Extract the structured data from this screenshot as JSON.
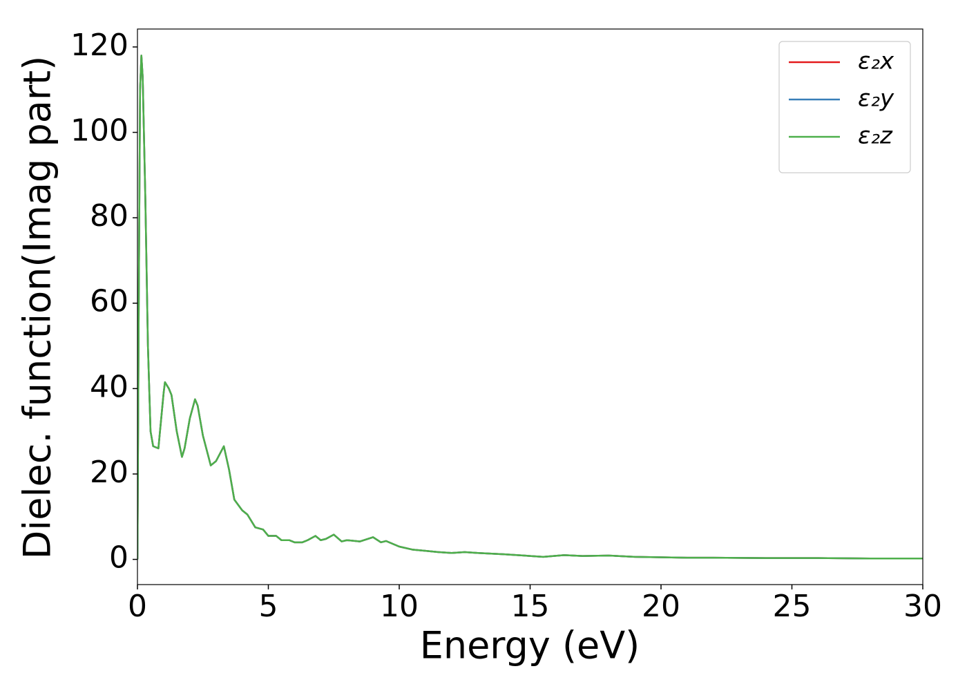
{
  "chart_data": {
    "type": "line",
    "xlabel": "Energy (eV)",
    "ylabel": "Dielec. function(Imag part)",
    "x": [
      0,
      0.05,
      0.1,
      0.15,
      0.2,
      0.3,
      0.4,
      0.5,
      0.6,
      0.8,
      1.0,
      1.05,
      1.2,
      1.3,
      1.5,
      1.7,
      1.8,
      2.0,
      2.2,
      2.3,
      2.5,
      2.8,
      3.0,
      3.3,
      3.5,
      3.7,
      4.0,
      4.2,
      4.5,
      4.8,
      5.0,
      5.3,
      5.5,
      5.8,
      6.0,
      6.3,
      6.5,
      6.8,
      7.0,
      7.2,
      7.5,
      7.8,
      8.0,
      8.5,
      9.0,
      9.3,
      9.5,
      10,
      10.5,
      11,
      11.5,
      12,
      12.5,
      13,
      14,
      15,
      15.5,
      16.3,
      17,
      18,
      19,
      20,
      21,
      22,
      24,
      26,
      28,
      30
    ],
    "series": [
      {
        "name": "ε₂x",
        "color": "#e41a1c",
        "values": [
          0,
          60,
          110,
          118,
          113,
          85,
          50,
          30,
          26.5,
          26,
          39,
          41.5,
          40,
          38.5,
          30,
          24,
          26,
          33,
          37.5,
          36,
          29,
          22,
          23,
          26.5,
          21,
          14,
          11.5,
          10.5,
          7.5,
          7,
          5.5,
          5.5,
          4.5,
          4.5,
          4,
          4,
          4.5,
          5.5,
          4.5,
          4.8,
          5.8,
          4.2,
          4.5,
          4.2,
          5.2,
          4,
          4.3,
          3,
          2.3,
          2,
          1.7,
          1.5,
          1.7,
          1.5,
          1.2,
          0.8,
          0.6,
          1.0,
          0.8,
          0.9,
          0.6,
          0.5,
          0.4,
          0.4,
          0.3,
          0.3,
          0.2,
          0.2
        ]
      },
      {
        "name": "ε₂y",
        "color": "#377eb8",
        "values": [
          0,
          60,
          110,
          118,
          113,
          85,
          50,
          30,
          26.5,
          26,
          39,
          41.5,
          40,
          38.5,
          30,
          24,
          26,
          33,
          37.5,
          36,
          29,
          22,
          23,
          26.5,
          21,
          14,
          11.5,
          10.5,
          7.5,
          7,
          5.5,
          5.5,
          4.5,
          4.5,
          4,
          4,
          4.5,
          5.5,
          4.5,
          4.8,
          5.8,
          4.2,
          4.5,
          4.2,
          5.2,
          4,
          4.3,
          3,
          2.3,
          2,
          1.7,
          1.5,
          1.7,
          1.5,
          1.2,
          0.8,
          0.6,
          1.0,
          0.8,
          0.9,
          0.6,
          0.5,
          0.4,
          0.4,
          0.3,
          0.3,
          0.2,
          0.2
        ]
      },
      {
        "name": "ε₂z",
        "color": "#4daf4a",
        "values": [
          0,
          60,
          110,
          118,
          113,
          85,
          50,
          30,
          26.5,
          26,
          39,
          41.5,
          40,
          38.5,
          30,
          24,
          26,
          33,
          37.5,
          36,
          29,
          22,
          23,
          26.5,
          21,
          14,
          11.5,
          10.5,
          7.5,
          7,
          5.5,
          5.5,
          4.5,
          4.5,
          4,
          4,
          4.5,
          5.5,
          4.5,
          4.8,
          5.8,
          4.2,
          4.5,
          4.2,
          5.2,
          4,
          4.3,
          3,
          2.3,
          2,
          1.7,
          1.5,
          1.7,
          1.5,
          1.2,
          0.8,
          0.6,
          1.0,
          0.8,
          0.9,
          0.6,
          0.5,
          0.4,
          0.4,
          0.3,
          0.3,
          0.2,
          0.2
        ]
      }
    ],
    "xlim": [
      0,
      30
    ],
    "xticks": [
      0,
      5,
      10,
      15,
      20,
      25,
      30
    ],
    "ylim": [
      -5.9,
      124.2
    ],
    "yticks": [
      0,
      20,
      40,
      60,
      80,
      100,
      120
    ],
    "grid": false,
    "legend": "upper right"
  }
}
